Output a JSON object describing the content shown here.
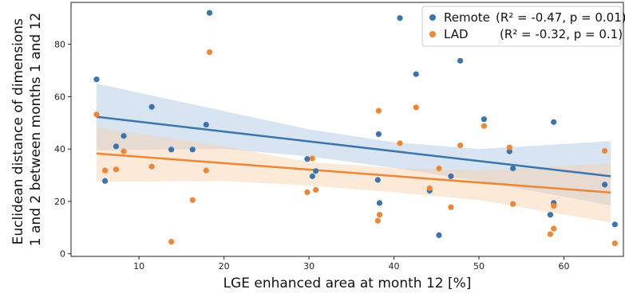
{
  "chart_data": {
    "type": "scatter",
    "xlabel": "LGE enhanced area at month 12 [%]",
    "ylabel_lines": [
      "Euclidean distance of dimensions",
      "1 and 2 between months 1 and 12"
    ],
    "xlim": [
      2,
      67
    ],
    "ylim": [
      -1,
      96
    ],
    "xticks": [
      10,
      20,
      30,
      40,
      50,
      60
    ],
    "yticks": [
      0,
      20,
      40,
      60,
      80
    ],
    "legend_placement": "top-right",
    "series": [
      {
        "name": "Remote",
        "stats": "(R² = -0.47, p = 0.01)",
        "color": "#3a75b0",
        "band_color": "#a9c4e2",
        "fit": {
          "x": [
            5,
            65.5
          ],
          "y": [
            52.3,
            29.6
          ]
        },
        "band_lower": [
          [
            5,
            39.5
          ],
          [
            20,
            40.0
          ],
          [
            30,
            37.2
          ],
          [
            40,
            32.8
          ],
          [
            50,
            27.8
          ],
          [
            65.5,
            18.5
          ]
        ],
        "band_upper": [
          [
            5,
            65.0
          ],
          [
            20,
            54.5
          ],
          [
            30,
            47.5
          ],
          [
            40,
            42.6
          ],
          [
            50,
            40.0
          ],
          [
            65.5,
            43.0
          ]
        ],
        "points": [
          [
            5.0,
            66.6
          ],
          [
            6.0,
            27.8
          ],
          [
            7.3,
            41.0
          ],
          [
            8.2,
            45.0
          ],
          [
            11.5,
            56.1
          ],
          [
            13.8,
            39.8
          ],
          [
            16.3,
            39.8
          ],
          [
            17.9,
            49.3
          ],
          [
            18.3,
            92.0
          ],
          [
            29.8,
            36.2
          ],
          [
            30.4,
            29.6
          ],
          [
            30.8,
            31.6
          ],
          [
            38.1,
            28.2
          ],
          [
            38.3,
            19.4
          ],
          [
            38.2,
            45.7
          ],
          [
            40.7,
            90.0
          ],
          [
            42.6,
            68.6
          ],
          [
            44.2,
            24.1
          ],
          [
            45.3,
            7.1
          ],
          [
            46.7,
            29.6
          ],
          [
            47.8,
            73.7
          ],
          [
            50.6,
            51.4
          ],
          [
            53.6,
            39.1
          ],
          [
            54.0,
            32.6
          ],
          [
            58.4,
            14.9
          ],
          [
            58.8,
            19.4
          ],
          [
            58.8,
            50.3
          ],
          [
            64.8,
            26.4
          ],
          [
            66.0,
            11.2
          ]
        ]
      },
      {
        "name": "LAD",
        "stats": "(R² = -0.32, p = 0.1)",
        "color": "#ee8634",
        "band_color": "#f9cfa8",
        "fit": {
          "x": [
            5,
            65.5
          ],
          "y": [
            38.3,
            23.4
          ]
        },
        "band_lower": [
          [
            5,
            27.5
          ],
          [
            20,
            27.8
          ],
          [
            30,
            26.0
          ],
          [
            40,
            23.5
          ],
          [
            50,
            20.5
          ],
          [
            65.5,
            12.0
          ]
        ],
        "band_upper": [
          [
            5,
            48.3
          ],
          [
            20,
            41.0
          ],
          [
            30,
            35.0
          ],
          [
            40,
            32.8
          ],
          [
            50,
            31.8
          ],
          [
            65.5,
            34.5
          ]
        ],
        "points": [
          [
            5.0,
            53.2
          ],
          [
            6.0,
            31.8
          ],
          [
            7.3,
            32.2
          ],
          [
            8.2,
            39.1
          ],
          [
            11.5,
            33.3
          ],
          [
            13.8,
            4.6
          ],
          [
            16.3,
            20.5
          ],
          [
            17.9,
            31.8
          ],
          [
            18.3,
            77.0
          ],
          [
            29.8,
            23.5
          ],
          [
            30.4,
            36.4
          ],
          [
            30.8,
            24.4
          ],
          [
            38.1,
            12.6
          ],
          [
            38.3,
            14.9
          ],
          [
            38.2,
            54.6
          ],
          [
            40.7,
            42.2
          ],
          [
            42.6,
            55.9
          ],
          [
            44.2,
            25.0
          ],
          [
            45.3,
            32.6
          ],
          [
            46.7,
            17.8
          ],
          [
            47.8,
            41.4
          ],
          [
            50.6,
            48.8
          ],
          [
            53.6,
            40.6
          ],
          [
            54.0,
            19.0
          ],
          [
            58.4,
            7.5
          ],
          [
            58.8,
            9.6
          ],
          [
            58.8,
            18.3
          ],
          [
            64.8,
            39.3
          ],
          [
            66.0,
            4.0
          ]
        ]
      }
    ]
  }
}
